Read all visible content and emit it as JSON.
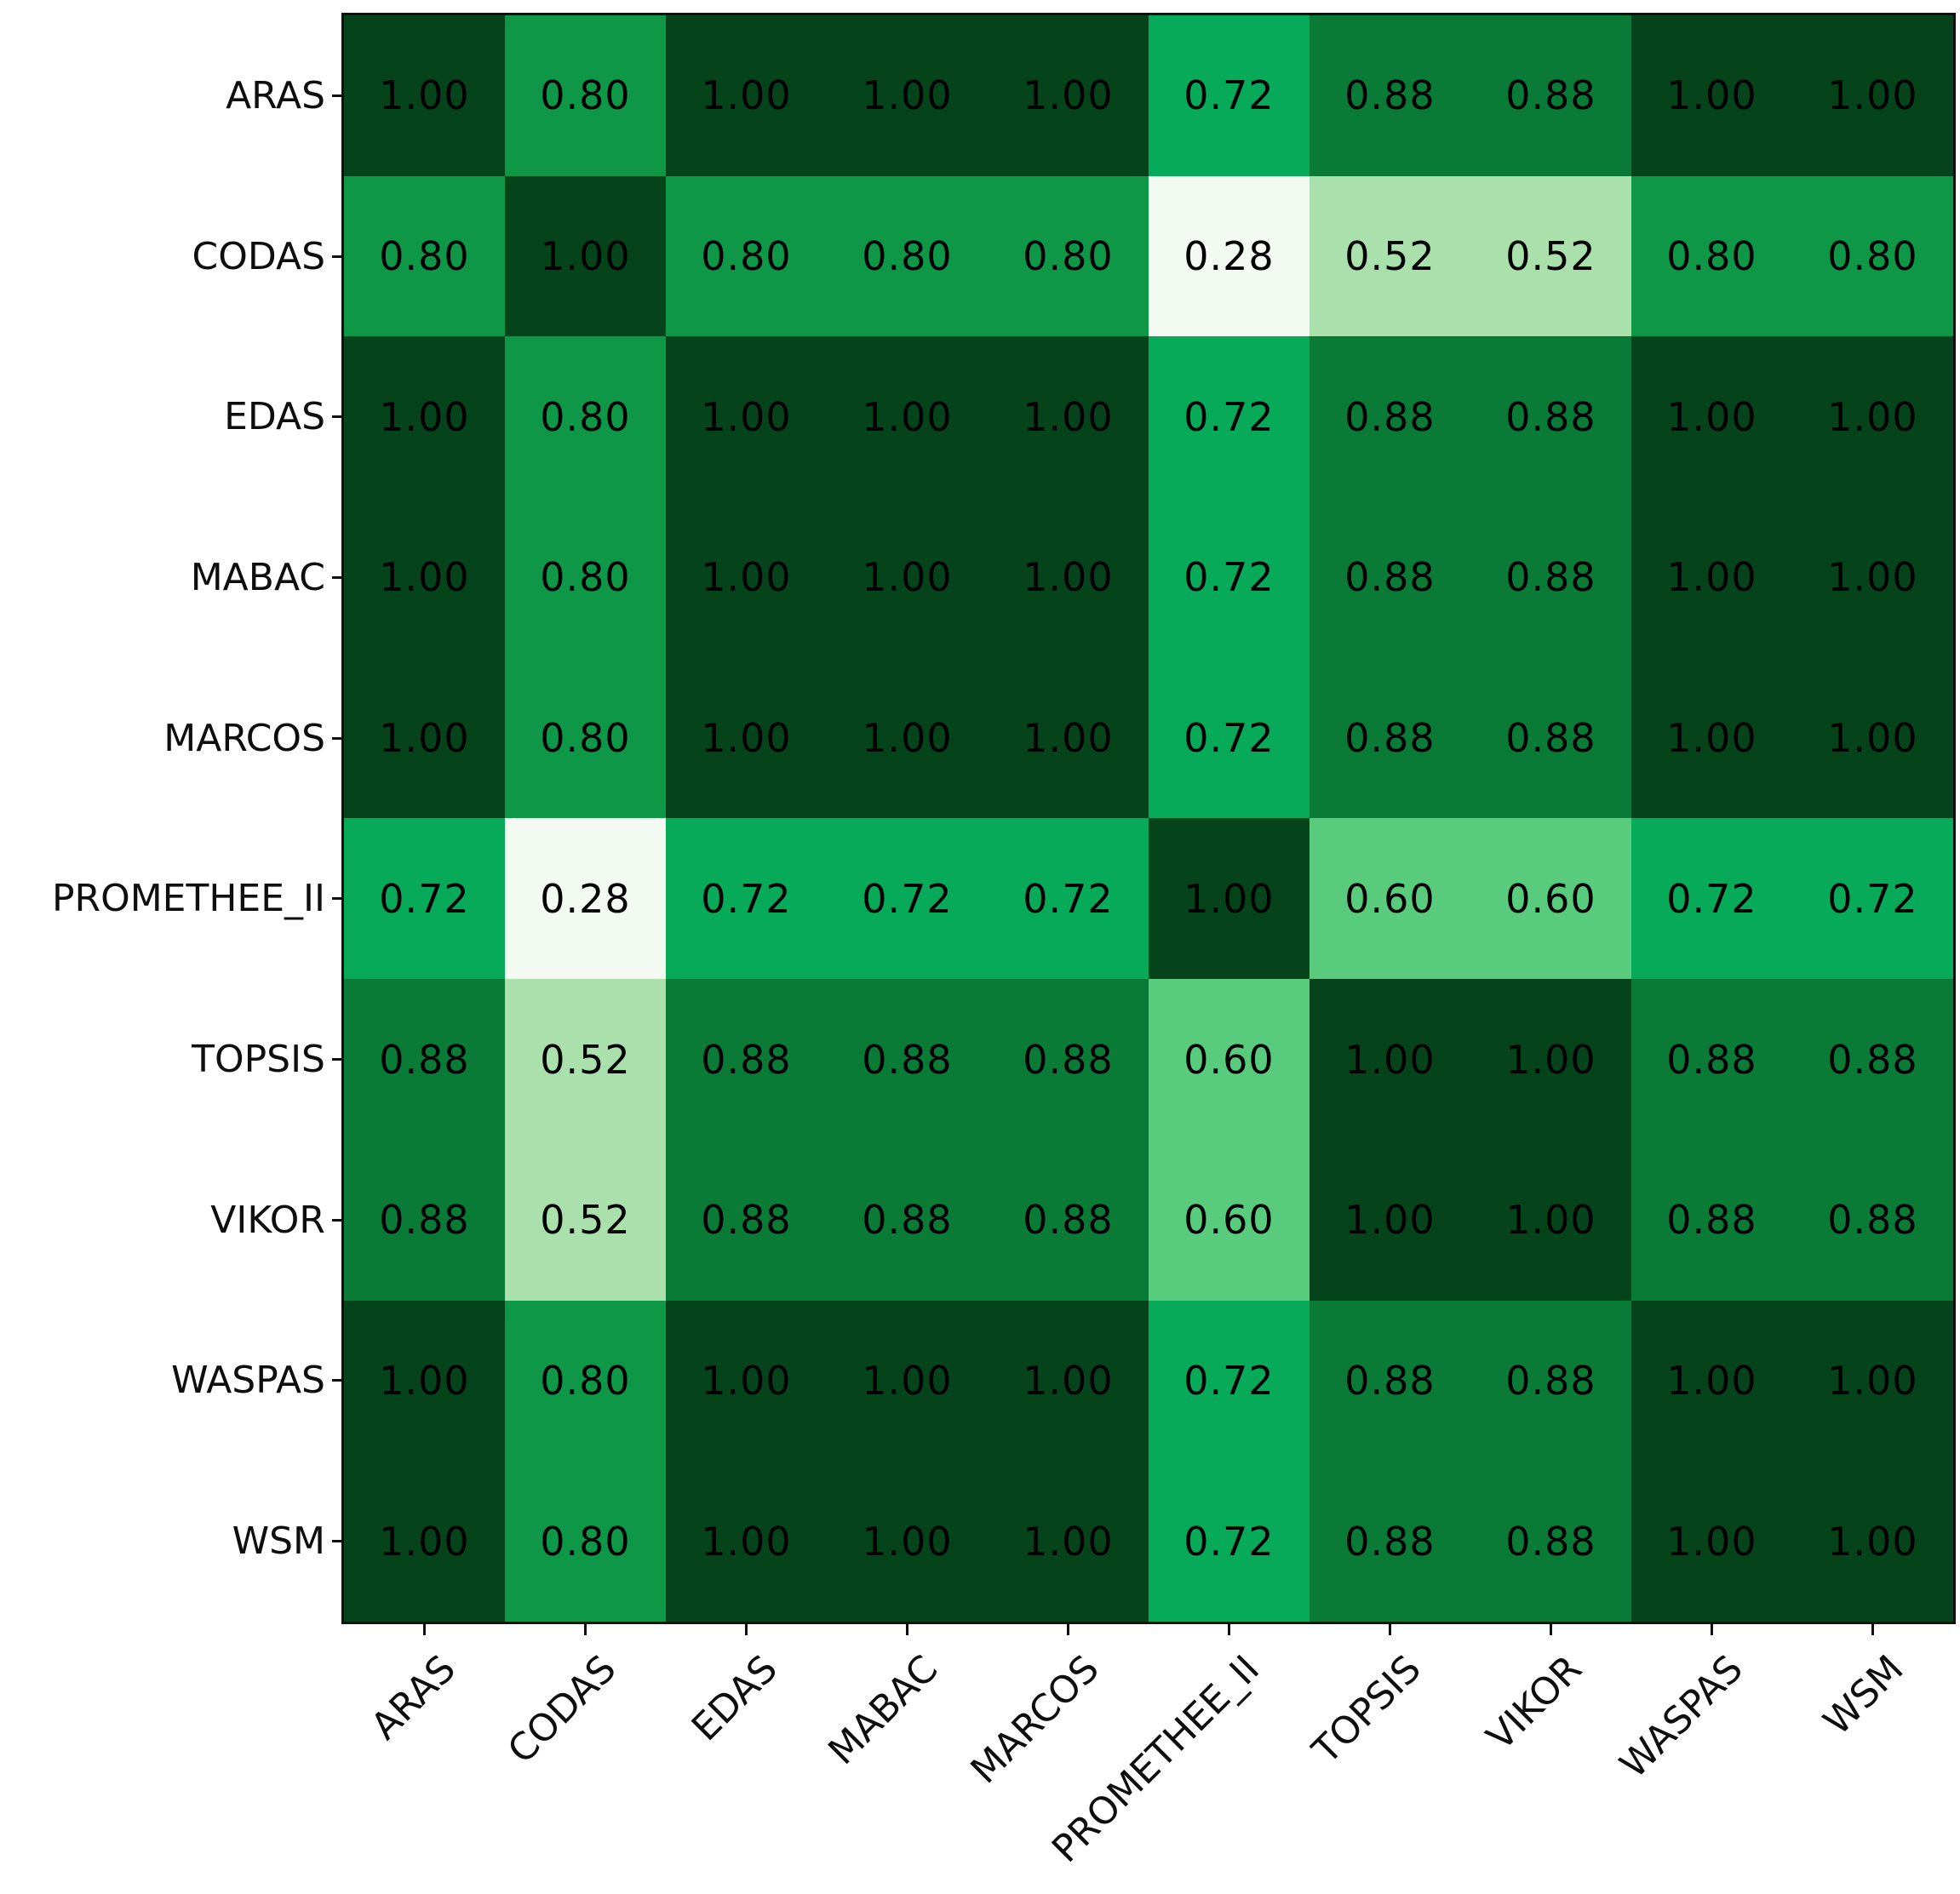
{
  "figure": {
    "background_color": "#ffffff",
    "spine_color": "#101010",
    "title": ""
  },
  "chart_data": {
    "type": "heatmap",
    "title": "",
    "xlabel": "",
    "ylabel": "",
    "x_categories": [
      "ARAS",
      "CODAS",
      "EDAS",
      "MABAC",
      "MARCOS",
      "PROMETHEE_II",
      "TOPSIS",
      "VIKOR",
      "WASPAS",
      "WSM"
    ],
    "y_categories": [
      "ARAS",
      "CODAS",
      "EDAS",
      "MABAC",
      "MARCOS",
      "PROMETHEE_II",
      "TOPSIS",
      "VIKOR",
      "WASPAS",
      "WSM"
    ],
    "values": [
      [
        1.0,
        0.8,
        1.0,
        1.0,
        1.0,
        0.72,
        0.88,
        0.88,
        1.0,
        1.0
      ],
      [
        0.8,
        1.0,
        0.8,
        0.8,
        0.8,
        0.28,
        0.52,
        0.52,
        0.8,
        0.8
      ],
      [
        1.0,
        0.8,
        1.0,
        1.0,
        1.0,
        0.72,
        0.88,
        0.88,
        1.0,
        1.0
      ],
      [
        1.0,
        0.8,
        1.0,
        1.0,
        1.0,
        0.72,
        0.88,
        0.88,
        1.0,
        1.0
      ],
      [
        1.0,
        0.8,
        1.0,
        1.0,
        1.0,
        0.72,
        0.88,
        0.88,
        1.0,
        1.0
      ],
      [
        0.72,
        0.28,
        0.72,
        0.72,
        0.72,
        1.0,
        0.6,
        0.6,
        0.72,
        0.72
      ],
      [
        0.88,
        0.52,
        0.88,
        0.88,
        0.88,
        0.6,
        1.0,
        1.0,
        0.88,
        0.88
      ],
      [
        0.88,
        0.52,
        0.88,
        0.88,
        0.88,
        0.6,
        1.0,
        1.0,
        0.88,
        0.88
      ],
      [
        1.0,
        0.8,
        1.0,
        1.0,
        1.0,
        0.72,
        0.88,
        0.88,
        1.0,
        1.0
      ],
      [
        1.0,
        0.8,
        1.0,
        1.0,
        1.0,
        0.72,
        0.88,
        0.88,
        1.0,
        1.0
      ]
    ],
    "cell_label_decimals": 2,
    "value_range": [
      0.28,
      1.0
    ],
    "colormap_style": "greens-sequential",
    "value_colors": {
      "1.00": "#05431a",
      "0.88": "#0a7a37",
      "0.80": "#0f9748",
      "0.72": "#06aa58",
      "0.60": "#58cb7d",
      "0.52": "#a9e0ac",
      "0.28": "#f3faf1"
    },
    "cell_text_color": "#000000",
    "layout": {
      "grid": false,
      "legend": "none",
      "colorbar": "none",
      "x_tick_rotation_deg": 45,
      "tick_color": "#101010"
    }
  }
}
